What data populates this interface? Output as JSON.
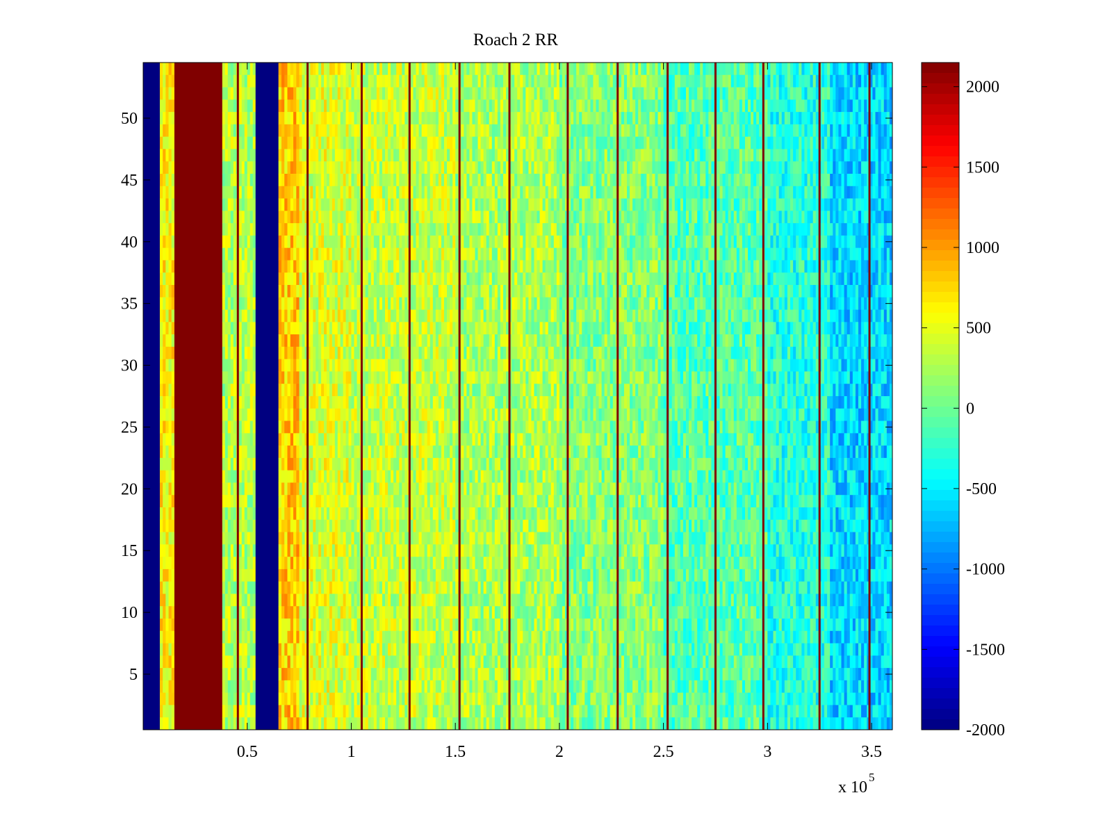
{
  "chart_data": {
    "type": "heatmap",
    "title": "Roach 2 RR",
    "xlabel": "",
    "ylabel": "",
    "x_exponent_label": "x 10",
    "x_exponent_power": "5",
    "xlim": [
      0,
      360000
    ],
    "ylim": [
      0.5,
      54.5
    ],
    "rows": 54,
    "x_ticks": [
      {
        "value": 50000,
        "label": "0.5"
      },
      {
        "value": 100000,
        "label": "1"
      },
      {
        "value": 150000,
        "label": "1.5"
      },
      {
        "value": 200000,
        "label": "2"
      },
      {
        "value": 250000,
        "label": "2.5"
      },
      {
        "value": 300000,
        "label": "3"
      },
      {
        "value": 350000,
        "label": "3.5"
      }
    ],
    "y_ticks": [
      {
        "value": 5,
        "label": "5"
      },
      {
        "value": 10,
        "label": "10"
      },
      {
        "value": 15,
        "label": "15"
      },
      {
        "value": 20,
        "label": "20"
      },
      {
        "value": 25,
        "label": "25"
      },
      {
        "value": 30,
        "label": "30"
      },
      {
        "value": 35,
        "label": "35"
      },
      {
        "value": 40,
        "label": "40"
      },
      {
        "value": 45,
        "label": "45"
      },
      {
        "value": 50,
        "label": "50"
      }
    ],
    "colorbar": {
      "colormap": "jet",
      "clim": [
        -2000,
        2150
      ],
      "ticks": [
        {
          "value": 2000,
          "label": "2000"
        },
        {
          "value": 1500,
          "label": "1500"
        },
        {
          "value": 1000,
          "label": "1000"
        },
        {
          "value": 500,
          "label": "500"
        },
        {
          "value": 0,
          "label": "0"
        },
        {
          "value": -500,
          "label": "-500"
        },
        {
          "value": -1000,
          "label": "-1000"
        },
        {
          "value": -1500,
          "label": "-1500"
        },
        {
          "value": -2000,
          "label": "-2000"
        }
      ]
    },
    "column_bands": [
      {
        "x0": 0,
        "x1": 8000,
        "value": -2000
      },
      {
        "x0": 8000,
        "x1": 15000,
        "value": 600
      },
      {
        "x0": 15000,
        "x1": 38000,
        "value": 2150
      },
      {
        "x0": 38000,
        "x1": 54000,
        "value": 300
      },
      {
        "x0": 54000,
        "x1": 65000,
        "value": -2000
      },
      {
        "x0": 65000,
        "x1": 75000,
        "value": 800
      },
      {
        "x0": 75000,
        "x1": 100000,
        "value": 450
      },
      {
        "x0": 100000,
        "x1": 150000,
        "value": 350
      },
      {
        "x0": 150000,
        "x1": 200000,
        "value": 250
      },
      {
        "x0": 200000,
        "x1": 250000,
        "value": 100
      },
      {
        "x0": 250000,
        "x1": 300000,
        "value": -100
      },
      {
        "x0": 300000,
        "x1": 330000,
        "value": -300
      },
      {
        "x0": 330000,
        "x1": 360000,
        "value": -600
      }
    ],
    "vertical_lines": [
      {
        "x": 45500,
        "value": 2150
      },
      {
        "x": 79000,
        "value": 2150
      },
      {
        "x": 105000,
        "value": 2150
      },
      {
        "x": 128000,
        "value": 2150
      },
      {
        "x": 152000,
        "value": 2150
      },
      {
        "x": 176000,
        "value": 2150
      },
      {
        "x": 204000,
        "value": 2150
      },
      {
        "x": 228000,
        "value": 2150
      },
      {
        "x": 252000,
        "value": 2150
      },
      {
        "x": 275000,
        "value": 2150
      },
      {
        "x": 298000,
        "value": 2150
      },
      {
        "x": 325000,
        "value": 2150
      },
      {
        "x": 349000,
        "value": 2150
      }
    ]
  }
}
